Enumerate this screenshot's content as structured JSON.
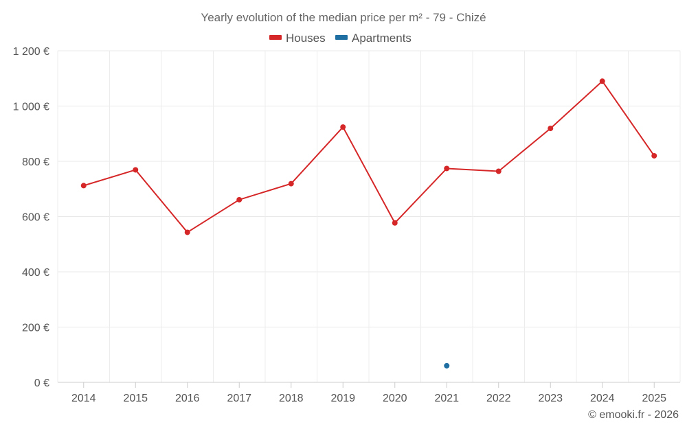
{
  "chart_data": {
    "type": "line",
    "title": "Yearly evolution of the median price per m² - 79 - Chizé",
    "credit": "© emooki.fr - 2026",
    "x": [
      "2014",
      "2015",
      "2016",
      "2017",
      "2018",
      "2019",
      "2020",
      "2021",
      "2022",
      "2023",
      "2024",
      "2025"
    ],
    "y_ticks": [
      "0 €",
      "200 €",
      "400 €",
      "600 €",
      "800 €",
      "1 000 €",
      "1 200 €"
    ],
    "ylim": [
      0,
      1200
    ],
    "grid": true,
    "legend_position": "top-center",
    "series": [
      {
        "name": "Houses",
        "color": "#d62728",
        "values": [
          712,
          769,
          543,
          661,
          719,
          924,
          577,
          774,
          764,
          919,
          1090,
          820
        ]
      },
      {
        "name": "Apartments",
        "color": "#1f6fa3",
        "values": [
          null,
          null,
          null,
          null,
          null,
          null,
          null,
          60,
          null,
          null,
          null,
          null
        ]
      }
    ]
  }
}
